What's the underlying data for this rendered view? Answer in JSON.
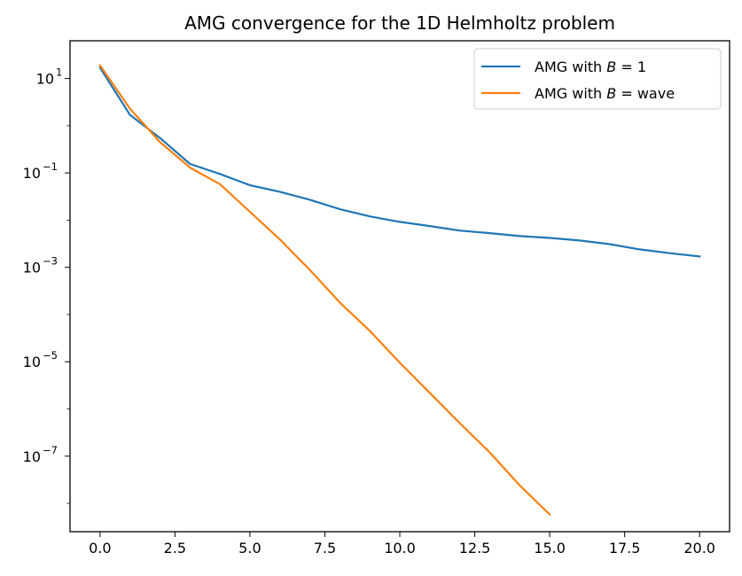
{
  "chart_data": {
    "type": "line",
    "title": "AMG convergence for the 1D Helmholtz problem",
    "xlabel": "",
    "ylabel": "",
    "yscale": "log",
    "xlim": [
      -1.0,
      21.0
    ],
    "ylim_exponent": [
      -8.6,
      1.8
    ],
    "x_ticks": [
      {
        "value": 0.0,
        "label": "0.0"
      },
      {
        "value": 2.5,
        "label": "2.5"
      },
      {
        "value": 5.0,
        "label": "5.0"
      },
      {
        "value": 7.5,
        "label": "7.5"
      },
      {
        "value": 10.0,
        "label": "10.0"
      },
      {
        "value": 12.5,
        "label": "12.5"
      },
      {
        "value": 15.0,
        "label": "15.0"
      },
      {
        "value": 17.5,
        "label": "17.5"
      },
      {
        "value": 20.0,
        "label": "20.0"
      }
    ],
    "y_ticks": [
      {
        "exponent": 1,
        "base": "10",
        "exp_label": "1"
      },
      {
        "exponent": -1,
        "base": "10",
        "exp_label": "−1"
      },
      {
        "exponent": -3,
        "base": "10",
        "exp_label": "−3"
      },
      {
        "exponent": -5,
        "base": "10",
        "exp_label": "−5"
      },
      {
        "exponent": -7,
        "base": "10",
        "exp_label": "−7"
      }
    ],
    "legend_position": "top-right",
    "series": [
      {
        "name": "AMG with B = 1",
        "legend_prefix": "AMG with ",
        "legend_var": "B",
        "legend_suffix": " = 1",
        "color": "#1f77b4",
        "x": [
          0,
          1,
          2,
          3,
          4,
          5,
          6,
          7,
          8,
          9,
          10,
          11,
          12,
          13,
          14,
          15,
          16,
          17,
          18,
          19,
          20
        ],
        "y": [
          17.0,
          1.7,
          0.55,
          0.155,
          0.095,
          0.055,
          0.04,
          0.027,
          0.017,
          0.012,
          0.0092,
          0.0075,
          0.006,
          0.0053,
          0.0046,
          0.0042,
          0.0037,
          0.0031,
          0.0024,
          0.002,
          0.0017
        ]
      },
      {
        "name": "AMG with B = wave",
        "legend_prefix": "AMG with ",
        "legend_var": "B",
        "legend_suffix": " = wave",
        "color": "#ff7f0e",
        "x": [
          0,
          1,
          2,
          3,
          4,
          5,
          6,
          7,
          8,
          9,
          10,
          11,
          12,
          13,
          14,
          15
        ],
        "y": [
          19.0,
          2.3,
          0.45,
          0.13,
          0.058,
          0.015,
          0.0039,
          0.00088,
          0.00018,
          4.5e-05,
          9.5e-06,
          2.2e-06,
          5e-07,
          1.2e-07,
          2.4e-08,
          5.8e-09
        ]
      }
    ]
  },
  "colors": {
    "axes": "#000000",
    "background": "#ffffff"
  }
}
